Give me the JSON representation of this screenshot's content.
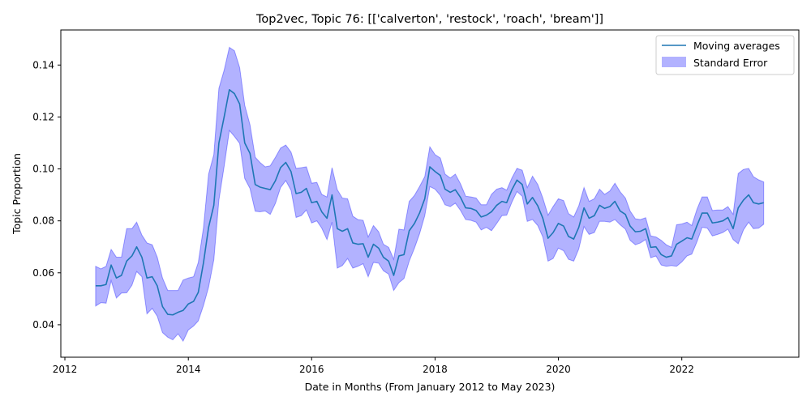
{
  "chart_data": {
    "type": "line",
    "title": "Top2vec, Topic 76: [['calverton', 'restock', 'roach', 'bream']]",
    "xlabel": "Date in Months (From January 2012 to May 2023)",
    "ylabel": "Topic Proportion",
    "xlim": [
      "2011-12-08",
      "2023-11-25"
    ],
    "ylim": [
      0.0275,
      0.1535
    ],
    "x_ticks": [
      "2012",
      "2014",
      "2016",
      "2018",
      "2020",
      "2022"
    ],
    "y_ticks": [
      "0.04",
      "0.06",
      "0.08",
      "0.10",
      "0.12",
      "0.14"
    ],
    "legend_position": "top-right",
    "grid": false,
    "line_color": "#1f77b4",
    "band_color": "#0000ff",
    "series": [
      {
        "name": "Moving averages",
        "x": [
          "2012-07",
          "2012-08",
          "2012-09",
          "2012-10",
          "2012-11",
          "2012-12",
          "2013-01",
          "2013-02",
          "2013-03",
          "2013-04",
          "2013-05",
          "2013-06",
          "2013-07",
          "2013-08",
          "2013-09",
          "2013-10",
          "2013-11",
          "2013-12",
          "2014-01",
          "2014-02",
          "2014-03",
          "2014-04",
          "2014-05",
          "2014-06",
          "2014-07",
          "2014-08",
          "2014-09",
          "2014-10",
          "2014-11",
          "2014-12",
          "2015-01",
          "2015-02",
          "2015-03",
          "2015-04",
          "2015-05",
          "2015-06",
          "2015-07",
          "2015-08",
          "2015-09",
          "2015-10",
          "2015-11",
          "2015-12",
          "2016-01",
          "2016-02",
          "2016-03",
          "2016-04",
          "2016-05",
          "2016-06",
          "2016-07",
          "2016-08",
          "2016-09",
          "2016-10",
          "2016-11",
          "2016-12",
          "2017-01",
          "2017-02",
          "2017-03",
          "2017-04",
          "2017-05",
          "2017-06",
          "2017-07",
          "2017-08",
          "2017-09",
          "2017-10",
          "2017-11",
          "2017-12",
          "2018-01",
          "2018-02",
          "2018-03",
          "2018-04",
          "2018-05",
          "2018-06",
          "2018-07",
          "2018-08",
          "2018-09",
          "2018-10",
          "2018-11",
          "2018-12",
          "2019-01",
          "2019-02",
          "2019-03",
          "2019-04",
          "2019-05",
          "2019-06",
          "2019-07",
          "2019-08",
          "2019-09",
          "2019-10",
          "2019-11",
          "2019-12",
          "2020-01",
          "2020-02",
          "2020-03",
          "2020-04",
          "2020-05",
          "2020-06",
          "2020-07",
          "2020-08",
          "2020-09",
          "2020-10",
          "2020-11",
          "2020-12",
          "2021-01",
          "2021-02",
          "2021-03",
          "2021-04",
          "2021-05",
          "2021-06",
          "2021-07",
          "2021-08",
          "2021-09",
          "2021-10",
          "2021-11",
          "2021-12",
          "2022-01",
          "2022-02",
          "2022-03",
          "2022-04",
          "2022-05",
          "2022-06",
          "2022-07",
          "2022-08",
          "2022-09",
          "2022-10",
          "2022-11",
          "2022-12",
          "2023-01",
          "2023-02",
          "2023-03",
          "2023-04",
          "2023-05"
        ],
        "values": [
          0.055,
          0.055,
          0.0555,
          0.063,
          0.058,
          0.059,
          0.0645,
          0.0665,
          0.07,
          0.066,
          0.058,
          0.0585,
          0.055,
          0.047,
          0.044,
          0.0438,
          0.0448,
          0.0455,
          0.048,
          0.049,
          0.0525,
          0.064,
          0.0775,
          0.086,
          0.11,
          0.12,
          0.1305,
          0.129,
          0.125,
          0.11,
          0.106,
          0.094,
          0.093,
          0.0925,
          0.092,
          0.0955,
          0.1005,
          0.1025,
          0.099,
          0.0905,
          0.091,
          0.0925,
          0.087,
          0.0875,
          0.0835,
          0.081,
          0.09,
          0.077,
          0.076,
          0.077,
          0.0715,
          0.071,
          0.0712,
          0.066,
          0.071,
          0.0695,
          0.066,
          0.0645,
          0.059,
          0.0665,
          0.067,
          0.0762,
          0.079,
          0.083,
          0.0885,
          0.1008,
          0.099,
          0.0975,
          0.0922,
          0.091,
          0.092,
          0.089,
          0.085,
          0.0848,
          0.084,
          0.0815,
          0.0822,
          0.0835,
          0.086,
          0.0875,
          0.087,
          0.092,
          0.0957,
          0.094,
          0.0865,
          0.089,
          0.0858,
          0.081,
          0.0733,
          0.0755,
          0.079,
          0.078,
          0.074,
          0.073,
          0.0775,
          0.085,
          0.081,
          0.082,
          0.086,
          0.0848,
          0.0855,
          0.0875,
          0.0838,
          0.0825,
          0.078,
          0.0758,
          0.076,
          0.077,
          0.0698,
          0.07,
          0.067,
          0.066,
          0.0665,
          0.071,
          0.0722,
          0.0735,
          0.073,
          0.0782,
          0.083,
          0.083,
          0.0792,
          0.0795,
          0.08,
          0.0813,
          0.077,
          0.085,
          0.088,
          0.09,
          0.087,
          0.0865,
          0.087
        ]
      },
      {
        "name": "Standard Error",
        "lower": [
          0.0472,
          0.0485,
          0.0483,
          0.057,
          0.0503,
          0.0522,
          0.0523,
          0.0552,
          0.0605,
          0.0585,
          0.0442,
          0.0463,
          0.0433,
          0.037,
          0.0352,
          0.0342,
          0.0365,
          0.0337,
          0.038,
          0.0395,
          0.0415,
          0.0475,
          0.0545,
          0.065,
          0.088,
          0.101,
          0.1148,
          0.1125,
          0.1098,
          0.0963,
          0.0925,
          0.0837,
          0.0835,
          0.0838,
          0.0825,
          0.0868,
          0.0928,
          0.0955,
          0.0918,
          0.0813,
          0.082,
          0.0842,
          0.0792,
          0.08,
          0.0772,
          0.0728,
          0.0795,
          0.0618,
          0.0628,
          0.0655,
          0.0618,
          0.0625,
          0.0635,
          0.0585,
          0.064,
          0.0637,
          0.0608,
          0.0595,
          0.0532,
          0.0562,
          0.0578,
          0.0645,
          0.0695,
          0.075,
          0.082,
          0.0932,
          0.0922,
          0.0898,
          0.0862,
          0.0855,
          0.0868,
          0.084,
          0.0805,
          0.0802,
          0.0795,
          0.0765,
          0.0775,
          0.0762,
          0.079,
          0.082,
          0.0822,
          0.0872,
          0.0913,
          0.0895,
          0.0798,
          0.0805,
          0.0782,
          0.0738,
          0.0645,
          0.0655,
          0.0695,
          0.0685,
          0.0652,
          0.0645,
          0.0692,
          0.0778,
          0.0748,
          0.0755,
          0.0798,
          0.0798,
          0.0795,
          0.0805,
          0.0785,
          0.0768,
          0.0725,
          0.0708,
          0.0715,
          0.0728,
          0.0658,
          0.0665,
          0.063,
          0.0625,
          0.0628,
          0.0625,
          0.0642,
          0.0665,
          0.0672,
          0.072,
          0.0775,
          0.0772,
          0.0742,
          0.0748,
          0.0755,
          0.0768,
          0.0728,
          0.0712,
          0.0765,
          0.0795,
          0.077,
          0.0772,
          0.0787
        ],
        "upper": [
          0.0625,
          0.0615,
          0.0625,
          0.069,
          0.066,
          0.066,
          0.077,
          0.077,
          0.0795,
          0.0745,
          0.0715,
          0.0708,
          0.066,
          0.058,
          0.0532,
          0.0532,
          0.0532,
          0.0572,
          0.058,
          0.0585,
          0.064,
          0.0775,
          0.098,
          0.1055,
          0.131,
          0.138,
          0.1468,
          0.1455,
          0.139,
          0.1245,
          0.117,
          0.1045,
          0.1025,
          0.1008,
          0.1012,
          0.1045,
          0.108,
          0.1092,
          0.1065,
          0.1002,
          0.1005,
          0.1008,
          0.0945,
          0.0948,
          0.0902,
          0.0892,
          0.1005,
          0.092,
          0.0888,
          0.0885,
          0.0818,
          0.0805,
          0.0802,
          0.0738,
          0.0782,
          0.0758,
          0.071,
          0.0698,
          0.0652,
          0.0768,
          0.0765,
          0.0875,
          0.0898,
          0.0932,
          0.097,
          0.1085,
          0.1055,
          0.1042,
          0.098,
          0.0965,
          0.098,
          0.0942,
          0.0895,
          0.0892,
          0.0888,
          0.0862,
          0.0862,
          0.0902,
          0.0922,
          0.0928,
          0.0918,
          0.0965,
          0.1002,
          0.0995,
          0.0928,
          0.0972,
          0.094,
          0.0888,
          0.0822,
          0.0855,
          0.0885,
          0.0878,
          0.0828,
          0.0815,
          0.0858,
          0.0928,
          0.0875,
          0.0885,
          0.0922,
          0.0902,
          0.0915,
          0.0945,
          0.0912,
          0.0888,
          0.0838,
          0.0808,
          0.0805,
          0.0812,
          0.0742,
          0.0738,
          0.0725,
          0.0708,
          0.0698,
          0.0785,
          0.0788,
          0.0795,
          0.0782,
          0.0845,
          0.0892,
          0.0892,
          0.084,
          0.0842,
          0.0842,
          0.0855,
          0.0825,
          0.0982,
          0.0998,
          0.1002,
          0.097,
          0.0958,
          0.095
        ]
      }
    ]
  }
}
